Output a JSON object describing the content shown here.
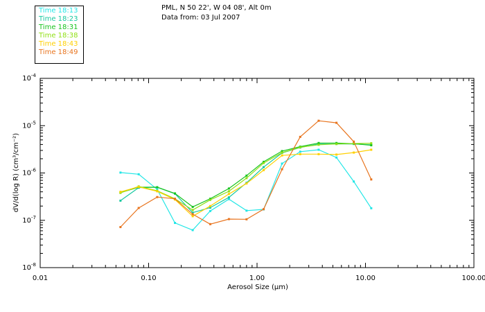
{
  "header": {
    "location": "PML, N 50 22', W 04 08', Alt 0m",
    "date": "Data from: 03 Jul 2007"
  },
  "chart_data": {
    "type": "line",
    "x_scale": "log",
    "y_scale": "log",
    "xlabel": "Aerosol Size (μm)",
    "ylabel": "dV/d(log R) (cm³/cm⁻²)",
    "xlim": [
      0.01,
      100
    ],
    "ylim": [
      1e-08,
      0.0001
    ],
    "x_ticks": [
      {
        "value": 0.01,
        "label": "0.01"
      },
      {
        "value": 0.1,
        "label": "0.10"
      },
      {
        "value": 1,
        "label": "1.00"
      },
      {
        "value": 10,
        "label": "10.00"
      },
      {
        "value": 100,
        "label": "100.00"
      }
    ],
    "y_ticks": [
      {
        "value": 1e-08,
        "base": "10",
        "exp": "-8"
      },
      {
        "value": 1e-07,
        "base": "10",
        "exp": "-7"
      },
      {
        "value": 1e-06,
        "base": "10",
        "exp": "-6"
      },
      {
        "value": 1e-05,
        "base": "10",
        "exp": "-5"
      },
      {
        "value": 0.0001,
        "base": "10",
        "exp": "-4"
      }
    ],
    "x": [
      0.055,
      0.081,
      0.12,
      0.175,
      0.255,
      0.37,
      0.55,
      0.8,
      1.15,
      1.7,
      2.5,
      3.7,
      5.4,
      7.8,
      11.3
    ],
    "series": [
      {
        "name": "Time 18:13",
        "color": "#22e6e6",
        "values": [
          1.02e-06,
          9.4e-07,
          4.5e-07,
          8.8e-08,
          6.2e-08,
          1.57e-07,
          2.8e-07,
          1.6e-07,
          1.7e-07,
          1.58e-06,
          2.82e-06,
          3.1e-06,
          2.12e-06,
          6.6e-07,
          1.8e-07
        ]
      },
      {
        "name": "Time 18:23",
        "color": "#17c8a0",
        "values": [
          2.6e-07,
          4.9e-07,
          5e-07,
          3.65e-07,
          1.45e-07,
          1.85e-07,
          3.05e-07,
          6.2e-07,
          1.33e-06,
          2.66e-06,
          3.45e-06,
          4.1e-06,
          4.1e-06,
          4.1e-06,
          3.95e-06
        ]
      },
      {
        "name": "Time 18:31",
        "color": "#18c41e",
        "values": [
          3.85e-07,
          5e-07,
          5e-07,
          3.7e-07,
          1.92e-07,
          2.85e-07,
          4.7e-07,
          8.8e-07,
          1.72e-06,
          2.9e-06,
          3.6e-06,
          4.3e-06,
          4.3e-06,
          4.15e-06,
          3.85e-06
        ]
      },
      {
        "name": "Time 18:38",
        "color": "#90e014",
        "values": [
          3.8e-07,
          5.2e-07,
          4.2e-07,
          2.85e-07,
          1.65e-07,
          2.7e-07,
          4.1e-07,
          7.8e-07,
          1.62e-06,
          2.7e-06,
          3.5e-06,
          3.95e-06,
          4.1e-06,
          4.2e-06,
          4.25e-06
        ]
      },
      {
        "name": "Time 18:43",
        "color": "#ffd000",
        "values": [
          4e-07,
          5.1e-07,
          4.1e-07,
          2.75e-07,
          1.22e-07,
          2e-07,
          3.6e-07,
          6e-07,
          1.15e-06,
          2.35e-06,
          2.5e-06,
          2.5e-06,
          2.45e-06,
          2.7e-06,
          3.1e-06
        ]
      },
      {
        "name": "Time 18:49",
        "color": "#e8741e",
        "values": [
          7.2e-08,
          1.82e-07,
          3.1e-07,
          2.85e-07,
          1.35e-07,
          8.3e-08,
          1.06e-07,
          1.05e-07,
          1.72e-07,
          1.2e-06,
          5.8e-06,
          1.27e-05,
          1.15e-05,
          4.6e-06,
          7.3e-07
        ]
      }
    ]
  }
}
